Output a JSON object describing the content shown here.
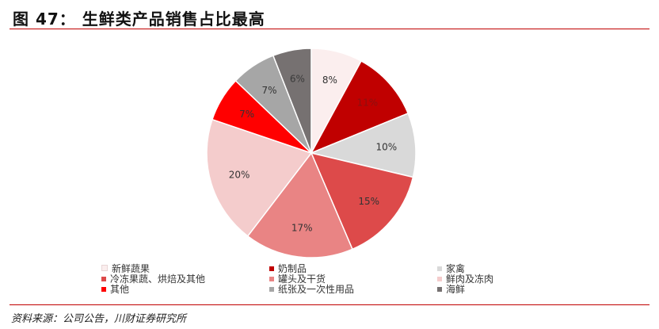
{
  "title": "图 47：  生鲜类产品销售占比最高",
  "source": "资料来源：公司公告，川财证券研究所",
  "chart_data": {
    "type": "pie",
    "start_angle_deg": 0,
    "direction": "clockwise",
    "slices": [
      {
        "label": "新鲜蔬果",
        "value": 8,
        "display": "8%",
        "color": "#fbeeee"
      },
      {
        "label": "奶制品",
        "value": 11,
        "display": "11%",
        "color": "#c00000"
      },
      {
        "label": "家禽",
        "value": 10,
        "display": "10%",
        "color": "#d9d9d9"
      },
      {
        "label": "冷冻果蔬、烘焙及其他",
        "value": 15,
        "display": "15%",
        "color": "#dd4a4a"
      },
      {
        "label": "罐头及干货",
        "value": 17,
        "display": "17%",
        "color": "#e98484"
      },
      {
        "label": "鲜肉及冻肉",
        "value": 20,
        "display": "20%",
        "color": "#f4cccc"
      },
      {
        "label": "其他",
        "value": 7,
        "display": "7%",
        "color": "#ff0000"
      },
      {
        "label": "纸张及一次性用品",
        "value": 7,
        "display": "7%",
        "color": "#a6a6a6"
      },
      {
        "label": "海鲜",
        "value": 6,
        "display": "6%",
        "color": "#767171"
      }
    ]
  }
}
